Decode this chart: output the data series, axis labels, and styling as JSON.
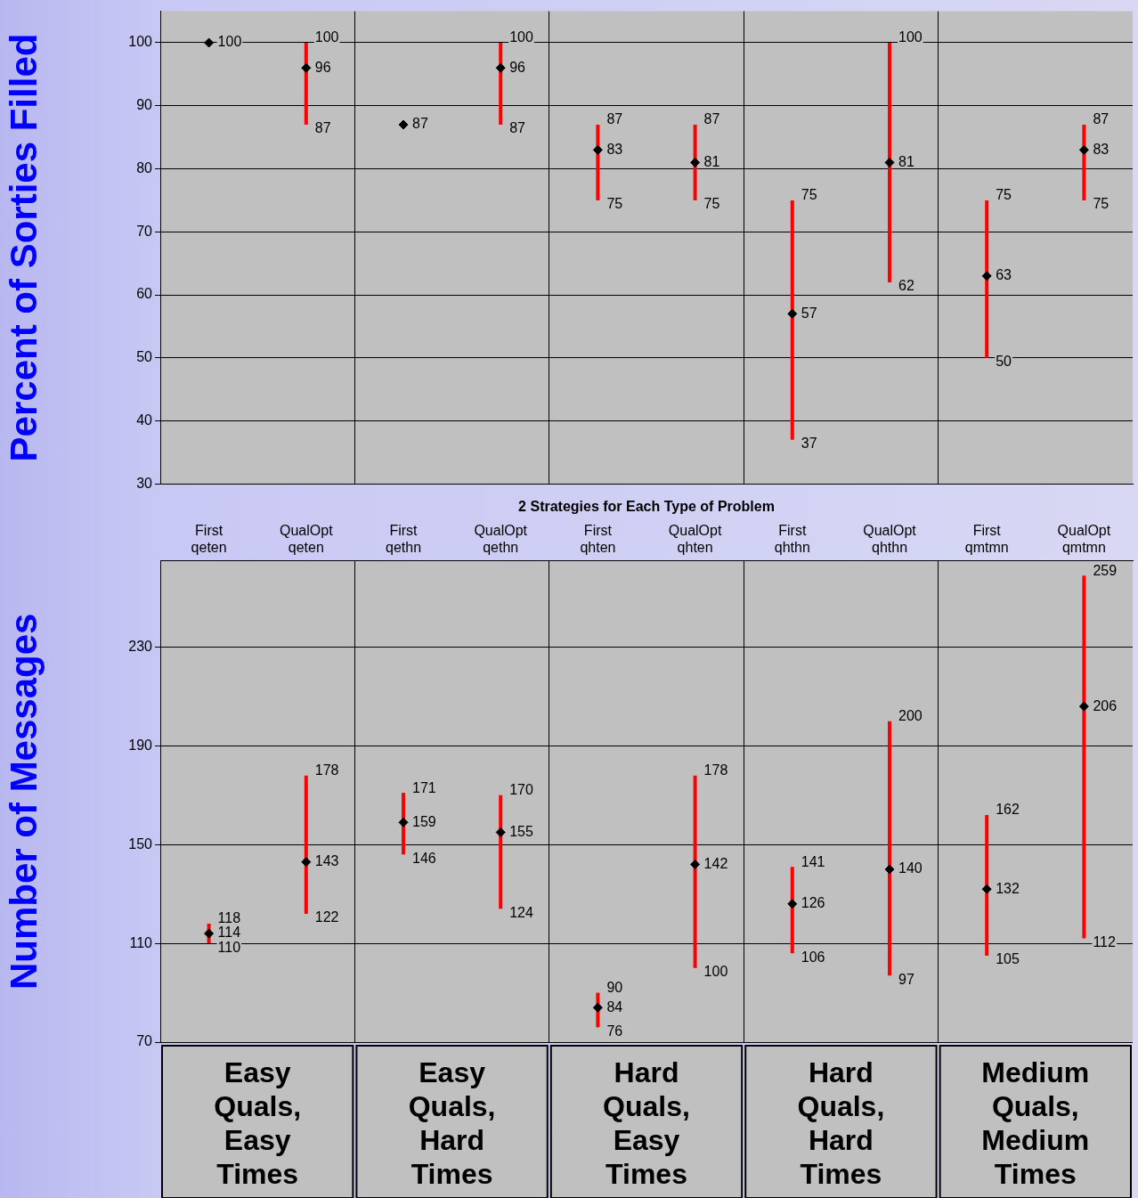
{
  "chart_data": [
    {
      "type": "scatter",
      "ylabel": "Percent of Sorties Filled",
      "categories": [
        "First qeten",
        "QualOpt qeten",
        "First qethn",
        "QualOpt qethn",
        "First qhten",
        "QualOpt qhten",
        "First qhthn",
        "QualOpt qhthn",
        "First qmtmn",
        "QualOpt qmtmn"
      ],
      "series": [
        {
          "color": "#000000",
          "values": [
            100,
            96,
            87,
            96,
            83,
            81,
            57,
            81,
            63,
            83
          ],
          "errors": [
            [
              100,
              100
            ],
            [
              87,
              100
            ],
            [
              87,
              87
            ],
            [
              87,
              100
            ],
            [
              75,
              87
            ],
            [
              75,
              87
            ],
            [
              37,
              75
            ],
            [
              62,
              100
            ],
            [
              50,
              75
            ],
            [
              75,
              87
            ]
          ]
        }
      ],
      "ylim": [
        30,
        105
      ],
      "yticks": [
        30,
        40,
        50,
        60,
        70,
        80,
        90,
        100
      ],
      "grid": true,
      "marker": "diamond",
      "data_labels": true,
      "tick_labels": "y",
      "annotations": [
        {
          "text": "100",
          "x": "QualOpt qeten",
          "y": 100
        },
        {
          "text": "87",
          "x": "QualOpt qeten",
          "y": 87
        },
        {
          "text": "100",
          "x": "QualOpt qethn",
          "y": 100
        },
        {
          "text": "87",
          "x": "QualOpt qethn",
          "y": 87
        },
        {
          "text": "87",
          "x": "First qhten",
          "y": 87
        },
        {
          "text": "75",
          "x": "First qhten",
          "y": 75
        },
        {
          "text": "87",
          "x": "QualOpt qhten",
          "y": 87
        },
        {
          "text": "75",
          "x": "QualOpt qhten",
          "y": 75
        },
        {
          "text": "75",
          "x": "First qhthn",
          "y": 75
        },
        {
          "text": "37",
          "x": "First qhthn",
          "y": 37
        },
        {
          "text": "100",
          "x": "QualOpt qhthn",
          "y": 100
        },
        {
          "text": "62",
          "x": "QualOpt qhthn",
          "y": 62
        },
        {
          "text": "75",
          "x": "First qmtmn",
          "y": 75
        },
        {
          "text": "50",
          "x": "First qmtmn",
          "y": 50
        },
        {
          "text": "87",
          "x": "QualOpt qmtmn",
          "y": 87
        },
        {
          "text": "75",
          "x": "QualOpt qmtmn",
          "y": 75
        }
      ]
    },
    {
      "type": "scatter",
      "ylabel": "Number of Messages",
      "xlabel": "2 Strategies for Each Type of Problem",
      "categories": [
        "First qeten",
        "QualOpt qeten",
        "First qethn",
        "QualOpt qethn",
        "First qhten",
        "QualOpt qhten",
        "First qhthn",
        "QualOpt qhthn",
        "First qmtmn",
        "QualOpt qmtmn"
      ],
      "series": [
        {
          "color": "#000000",
          "values": [
            114,
            143,
            159,
            155,
            84,
            142,
            126,
            140,
            132,
            206
          ],
          "errors": [
            [
              110,
              118
            ],
            [
              122,
              178
            ],
            [
              146,
              171
            ],
            [
              124,
              170
            ],
            [
              76,
              90
            ],
            [
              100,
              178
            ],
            [
              106,
              141
            ],
            [
              97,
              200
            ],
            [
              105,
              162
            ],
            [
              112,
              259
            ]
          ]
        }
      ],
      "ylim": [
        70,
        265
      ],
      "yticks": [
        70,
        110,
        150,
        190,
        230
      ],
      "grid": true,
      "marker": "diamond",
      "data_labels": true,
      "annotations": [
        "Easy Quals, Easy Times",
        "Easy Quals, Hard Times",
        "Hard Quals, Easy Times",
        "Hard Quals, Hard Times",
        "Medium Quals, Medium Times",
        {
          "text": "118",
          "x": "First qeten",
          "y": 118
        },
        {
          "text": "110",
          "x": "First qeten",
          "y": 110
        },
        {
          "text": "178",
          "x": "QualOpt qeten",
          "y": 178
        },
        {
          "text": "122",
          "x": "QualOpt qeten",
          "y": 122
        },
        {
          "text": "171",
          "x": "First qethn",
          "y": 171
        },
        {
          "text": "146",
          "x": "First qethn",
          "y": 146
        },
        {
          "text": "170",
          "x": "QualOpt qethn",
          "y": 170
        },
        {
          "text": "124",
          "x": "QualOpt qethn",
          "y": 124
        },
        {
          "text": "90",
          "x": "First qhten",
          "y": 90
        },
        {
          "text": "76",
          "x": "First qhten",
          "y": 76
        },
        {
          "text": "178",
          "x": "QualOpt qhten",
          "y": 178
        },
        {
          "text": "100",
          "x": "QualOpt qhten",
          "y": 100
        },
        {
          "text": "141",
          "x": "First qhthn",
          "y": 141
        },
        {
          "text": "106",
          "x": "First qhthn",
          "y": 106
        },
        {
          "text": "200",
          "x": "QualOpt qhthn",
          "y": 200
        },
        {
          "text": "97",
          "x": "QualOpt qhthn",
          "y": 97
        },
        {
          "text": "162",
          "x": "First qmtmn",
          "y": 162
        },
        {
          "text": "105",
          "x": "First qmtmn",
          "y": 105
        },
        {
          "text": "259",
          "x": "QualOpt qmtmn",
          "y": 259
        },
        {
          "text": "112",
          "x": "QualOpt qmtmn",
          "y": 112
        }
      ]
    }
  ]
}
